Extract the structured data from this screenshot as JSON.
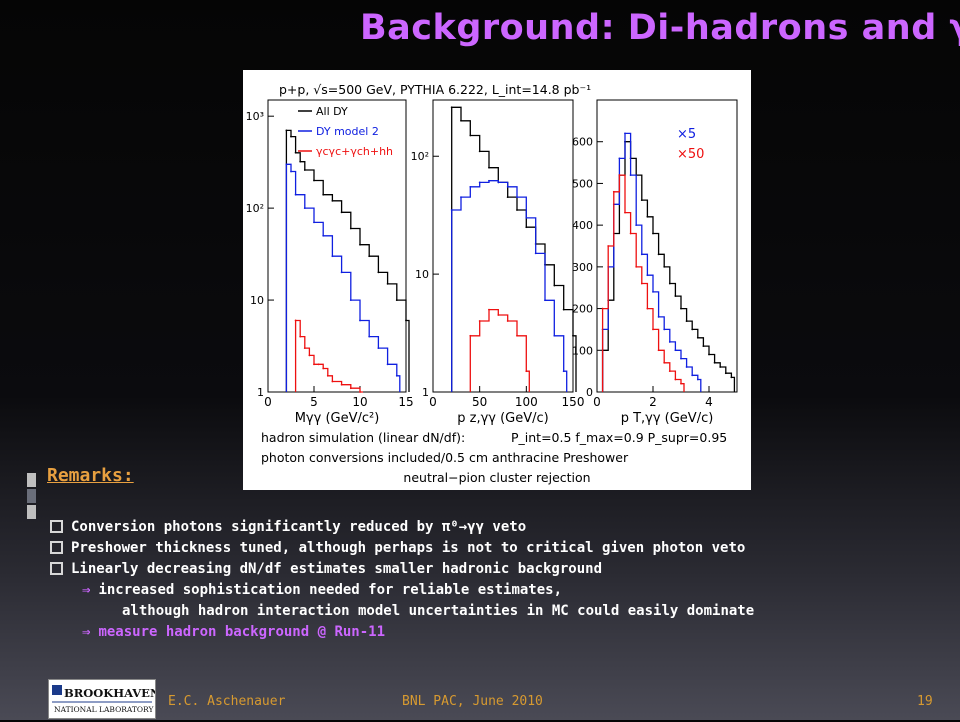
{
  "slide": {
    "title": "Background: Di-hadrons and γ",
    "remarks_heading": "Remarks:",
    "bullets": [
      "Conversion photons significantly reduced by π⁰→γγ veto",
      "Preshower thickness tuned, although perhaps is not to critical given photon veto",
      "Linearly decreasing dN/df estimates smaller hadronic background"
    ],
    "sub_points": [
      "increased sophistication needed for reliable estimates,",
      "although hadron interaction model uncertainties in MC could easily dominate"
    ],
    "final_point": "measure hadron background @ Run-11",
    "arrow_symbol": "⇒",
    "footer": {
      "logo_name": "BROOKHAVEN",
      "logo_sub": "NATIONAL LABORATORY",
      "author": "E.C. Aschenauer",
      "event": "BNL PAC, June 2010",
      "page": "19"
    },
    "colors": {
      "title": "#cc66ff",
      "remarks": "#e8a040",
      "footer": "#d79a30",
      "arrow_text": "#cc66ff",
      "bar_light": "#bfbfbf",
      "bar_dark": "#555a66"
    }
  },
  "chart_data": [
    {
      "type": "line",
      "header": "p+p, √s=500 GeV, PYTHIA 6.222, L_int=14.8 pb⁻¹",
      "xlabel": "Mγγ (GeV/c²)",
      "ylabel": "",
      "y_scale": "log",
      "ylim": [
        1,
        1500
      ],
      "xlim": [
        0,
        15
      ],
      "x_ticks": [
        "0",
        "5",
        "10",
        "15"
      ],
      "y_ticks": [
        "1",
        "10",
        "10²",
        "10³"
      ],
      "legend": [
        "All DY",
        "DY model 2",
        "γcγc+γch+hh"
      ],
      "series": [
        {
          "name": "All DY",
          "color": "#000000",
          "x": [
            2,
            2.5,
            3,
            3.5,
            4,
            5,
            6,
            7,
            8,
            9,
            10,
            11,
            12,
            13,
            14,
            15
          ],
          "values": [
            700,
            600,
            400,
            320,
            260,
            200,
            140,
            120,
            90,
            60,
            40,
            30,
            20,
            15,
            10,
            6
          ]
        },
        {
          "name": "DY model 2",
          "color": "#1020e0",
          "x": [
            2,
            2.5,
            3,
            4,
            5,
            6,
            7,
            8,
            9,
            10,
            11,
            12,
            13,
            14
          ],
          "values": [
            300,
            250,
            140,
            100,
            70,
            50,
            30,
            20,
            10,
            6,
            4,
            3,
            2,
            1.5
          ]
        },
        {
          "name": "γcγc+γch+hh",
          "color": "#ee1010",
          "x": [
            3,
            3.5,
            4,
            4.5,
            5,
            5.5,
            6,
            6.5,
            7,
            8,
            9,
            10
          ],
          "values": [
            6,
            4,
            3,
            2.5,
            2,
            2,
            1.8,
            1.5,
            1.3,
            1.2,
            1.1,
            1
          ]
        }
      ]
    },
    {
      "type": "line",
      "xlabel": "p z,γγ (GeV/c)",
      "ylabel": "",
      "y_scale": "log",
      "ylim": [
        1,
        300
      ],
      "xlim": [
        0,
        150
      ],
      "x_ticks": [
        "0",
        "50",
        "100",
        "150"
      ],
      "y_ticks": [
        "1",
        "10",
        "10²"
      ],
      "series": [
        {
          "name": "",
          "color": "#000000",
          "x": [
            20,
            30,
            40,
            50,
            60,
            70,
            80,
            90,
            100,
            110,
            120,
            130,
            140,
            150
          ],
          "values": [
            260,
            200,
            150,
            110,
            80,
            60,
            45,
            35,
            25,
            18,
            12,
            8,
            5,
            3
          ]
        },
        {
          "name": "",
          "color": "#1020e0",
          "x": [
            20,
            30,
            40,
            50,
            60,
            70,
            80,
            90,
            100,
            110,
            120,
            130,
            140
          ],
          "values": [
            35,
            45,
            55,
            60,
            62,
            60,
            55,
            45,
            30,
            15,
            6,
            3,
            1.5
          ]
        },
        {
          "name": "",
          "color": "#ee1010",
          "x": [
            40,
            50,
            60,
            70,
            80,
            90,
            100
          ],
          "values": [
            3,
            4,
            5,
            4.5,
            4,
            3,
            1.5
          ]
        }
      ]
    },
    {
      "type": "line",
      "xlabel": "p T,γγ (GeV/c)",
      "ylabel": "",
      "y_scale": "linear",
      "ylim": [
        0,
        700
      ],
      "xlim": [
        0,
        5
      ],
      "x_ticks": [
        "0",
        "2",
        "4"
      ],
      "y_ticks": [
        "0",
        "100",
        "200",
        "300",
        "400",
        "500",
        "600"
      ],
      "legend": [
        "×5",
        "×50"
      ],
      "series": [
        {
          "name": "",
          "color": "#000000",
          "x": [
            0.2,
            0.4,
            0.6,
            0.8,
            1.0,
            1.2,
            1.4,
            1.6,
            1.8,
            2.0,
            2.2,
            2.4,
            2.6,
            2.8,
            3.0,
            3.2,
            3.4,
            3.6,
            3.8,
            4.0,
            4.2,
            4.4,
            4.6,
            4.8
          ],
          "values": [
            100,
            220,
            380,
            520,
            600,
            560,
            520,
            460,
            420,
            380,
            330,
            300,
            260,
            230,
            200,
            170,
            150,
            130,
            110,
            90,
            70,
            60,
            45,
            35
          ]
        },
        {
          "name": "×5",
          "color": "#1020e0",
          "x": [
            0.2,
            0.4,
            0.6,
            0.8,
            1.0,
            1.2,
            1.4,
            1.6,
            1.8,
            2.0,
            2.2,
            2.4,
            2.6,
            2.8,
            3.0,
            3.2,
            3.4,
            3.6
          ],
          "values": [
            150,
            300,
            450,
            560,
            620,
            520,
            400,
            330,
            280,
            240,
            180,
            150,
            120,
            100,
            80,
            60,
            40,
            30
          ]
        },
        {
          "name": "×50",
          "color": "#ee1010",
          "x": [
            0.2,
            0.4,
            0.6,
            0.8,
            1.0,
            1.2,
            1.4,
            1.6,
            1.8,
            2.0,
            2.2,
            2.4,
            2.6,
            2.8,
            3.0
          ],
          "values": [
            200,
            350,
            480,
            520,
            430,
            380,
            300,
            260,
            200,
            150,
            100,
            70,
            50,
            30,
            20
          ]
        }
      ]
    }
  ],
  "figure_footer": {
    "line1_left": "hadron simulation (linear dN/df):",
    "line1_right": "P_int=0.5  f_max=0.9  P_supr=0.95",
    "line2": "photon conversions included/0.5 cm anthracine Preshower",
    "line3": "neutral−pion cluster rejection"
  }
}
